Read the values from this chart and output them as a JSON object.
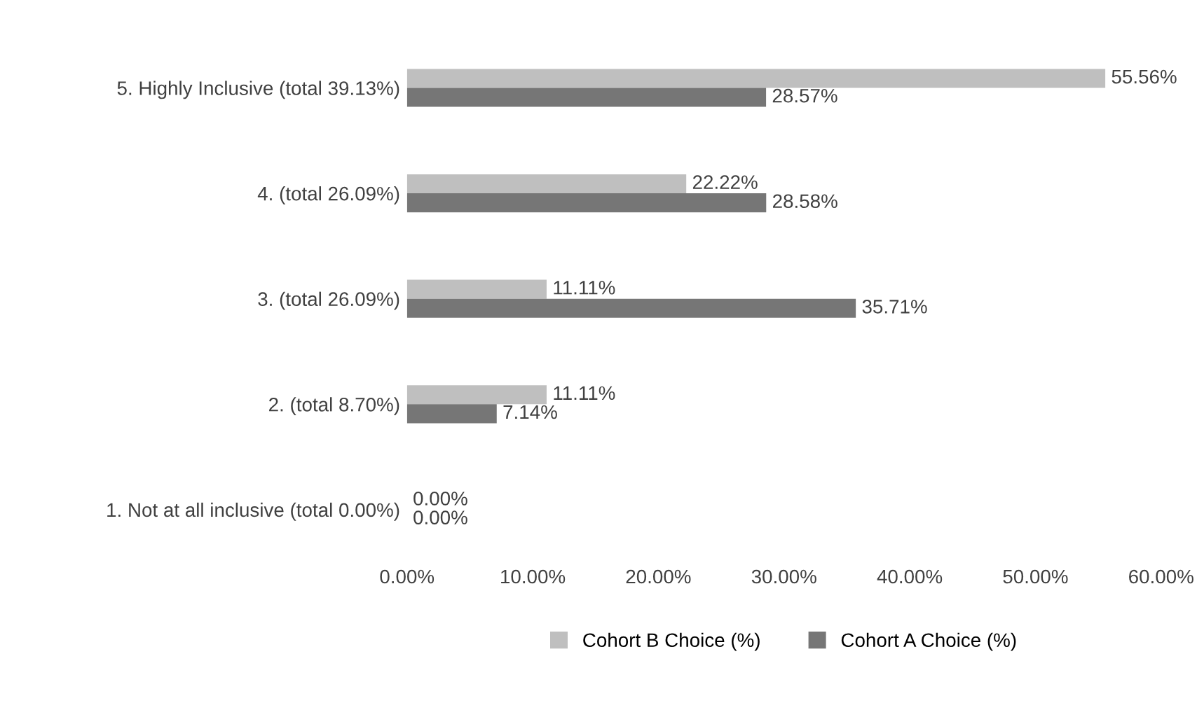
{
  "chart_data": {
    "type": "bar",
    "orientation": "horizontal",
    "categories": [
      "5. Highly Inclusive (total 39.13%)",
      "4. (total 26.09%)",
      "3. (total 26.09%)",
      "2. (total 8.70%)",
      "1. Not at all inclusive (total 0.00%)"
    ],
    "series": [
      {
        "name": "Cohort B Choice (%)",
        "color": "#bfbfbf",
        "values": [
          55.56,
          22.22,
          11.11,
          11.11,
          0.0
        ],
        "value_labels": [
          "55.56%",
          "22.22%",
          "11.11%",
          "11.11%",
          "0.00%"
        ]
      },
      {
        "name": "Cohort A Choice (%)",
        "color": "#767676",
        "values": [
          28.57,
          28.58,
          35.71,
          7.14,
          0.0
        ],
        "value_labels": [
          "28.57%",
          "28.58%",
          "35.71%",
          "7.14%",
          "0.00%"
        ]
      }
    ],
    "xlim": [
      0,
      60
    ],
    "xticks": [
      {
        "value": 0,
        "label": "0.00%"
      },
      {
        "value": 10,
        "label": "10.00%"
      },
      {
        "value": 20,
        "label": "20.00%"
      },
      {
        "value": 30,
        "label": "30.00%"
      },
      {
        "value": 40,
        "label": "40.00%"
      },
      {
        "value": 50,
        "label": "50.00%"
      },
      {
        "value": 60,
        "label": "60.00%"
      }
    ],
    "grid": false,
    "legend": "bottom"
  }
}
